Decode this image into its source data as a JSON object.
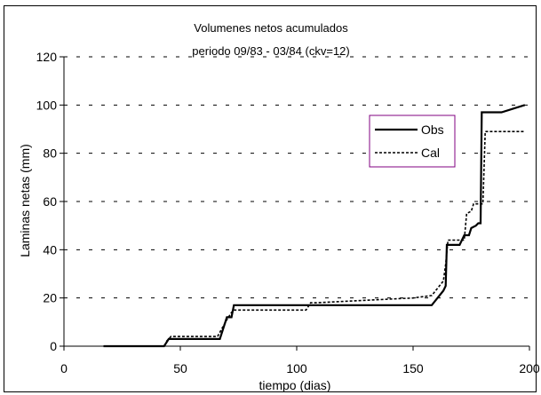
{
  "chart_data": {
    "type": "line",
    "title": "Volumenes netos acumulados",
    "subtitle": "periodo 09/83 - 03/84 (ckv=12)",
    "xlabel": "tiempo (dias)",
    "ylabel": "Laminas netas (mm)",
    "xlim": [
      0,
      200
    ],
    "ylim": [
      0,
      120
    ],
    "xticks": [
      0,
      50,
      100,
      150,
      200
    ],
    "yticks": [
      0,
      20,
      40,
      60,
      80,
      100,
      120
    ],
    "grid": "horizontal dashed",
    "legend_position": "right-center",
    "series": [
      {
        "name": "Obs",
        "style": "solid",
        "color": "#000000",
        "points": [
          [
            17,
            0
          ],
          [
            43,
            0
          ],
          [
            45,
            3
          ],
          [
            67,
            3
          ],
          [
            70,
            12
          ],
          [
            72,
            12
          ],
          [
            73,
            17
          ],
          [
            158,
            17
          ],
          [
            163,
            23
          ],
          [
            164,
            25
          ],
          [
            164.5,
            42
          ],
          [
            170,
            42
          ],
          [
            172,
            46
          ],
          [
            174,
            46
          ],
          [
            175,
            49
          ],
          [
            177,
            50
          ],
          [
            178,
            51
          ],
          [
            179,
            51
          ],
          [
            179.5,
            97
          ],
          [
            188,
            97
          ],
          [
            198,
            100
          ]
        ]
      },
      {
        "name": "Cal",
        "style": "dotted",
        "color": "#000000",
        "points": [
          [
            44,
            2
          ],
          [
            46,
            4
          ],
          [
            66,
            4
          ],
          [
            70,
            11
          ],
          [
            72,
            14
          ],
          [
            73,
            15
          ],
          [
            104,
            15
          ],
          [
            106,
            18
          ],
          [
            108,
            18
          ],
          [
            150,
            20
          ],
          [
            158,
            21
          ],
          [
            163,
            27
          ],
          [
            164,
            34
          ],
          [
            165,
            44
          ],
          [
            172,
            44
          ],
          [
            173,
            55
          ],
          [
            175,
            56
          ],
          [
            176,
            59
          ],
          [
            180,
            59
          ],
          [
            181,
            89
          ],
          [
            198,
            89
          ]
        ]
      }
    ]
  }
}
